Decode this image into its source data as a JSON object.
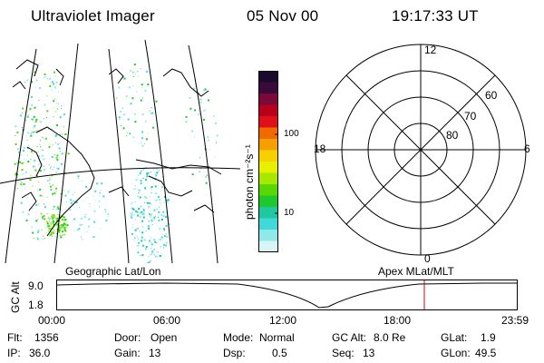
{
  "header": {
    "instrument": "Ultraviolet Imager",
    "date": "05 Nov 00",
    "time": "19:17:33 UT"
  },
  "map_panel": {
    "caption": "Geographic Lat/Lon"
  },
  "colorbar": {
    "unit_label": "photon cm⁻²s⁻¹",
    "ticks": [
      "100",
      "10"
    ],
    "colors": [
      "#1a0a2e",
      "#3a0a3a",
      "#7a0a3a",
      "#b8001a",
      "#e0101a",
      "#f06a00",
      "#f5a000",
      "#f8d000",
      "#e8f000",
      "#a8e800",
      "#58d800",
      "#20c830",
      "#20c8a0",
      "#40d8d8",
      "#90e8e8",
      "#d8f4f4"
    ]
  },
  "polar_plot": {
    "caption": "Apex MLat/MLT",
    "mlt_labels": {
      "top": "12",
      "bottom": "0",
      "left": "18",
      "right": "6"
    },
    "lat_labels": [
      "60",
      "70",
      "80"
    ]
  },
  "timeline": {
    "y_axis_label": "GC Alt",
    "y_ticks": [
      "9.0",
      "1.8"
    ],
    "x_ticks": [
      "00:00",
      "06:00",
      "12:00",
      "18:00",
      "23:59"
    ],
    "current_time_marker_color": "#e00000"
  },
  "status": {
    "rows": [
      [
        {
          "key": "Flt:",
          "value": "1356"
        },
        {
          "key": "Door:",
          "value": "Open"
        },
        {
          "key": "Mode:",
          "value": "Normal"
        },
        {
          "key": "GC Alt:",
          "value": "8.0 Re"
        },
        {
          "key": "GLat:",
          "value": "1.9"
        }
      ],
      [
        {
          "key": "IP:",
          "value": "36.0"
        },
        {
          "key": "Gain:",
          "value": "13"
        },
        {
          "key": "Dsp:",
          "value": "0.5"
        },
        {
          "key": "Seq:",
          "value": "13"
        },
        {
          "key": "GLon:",
          "value": "49.5"
        }
      ]
    ]
  }
}
